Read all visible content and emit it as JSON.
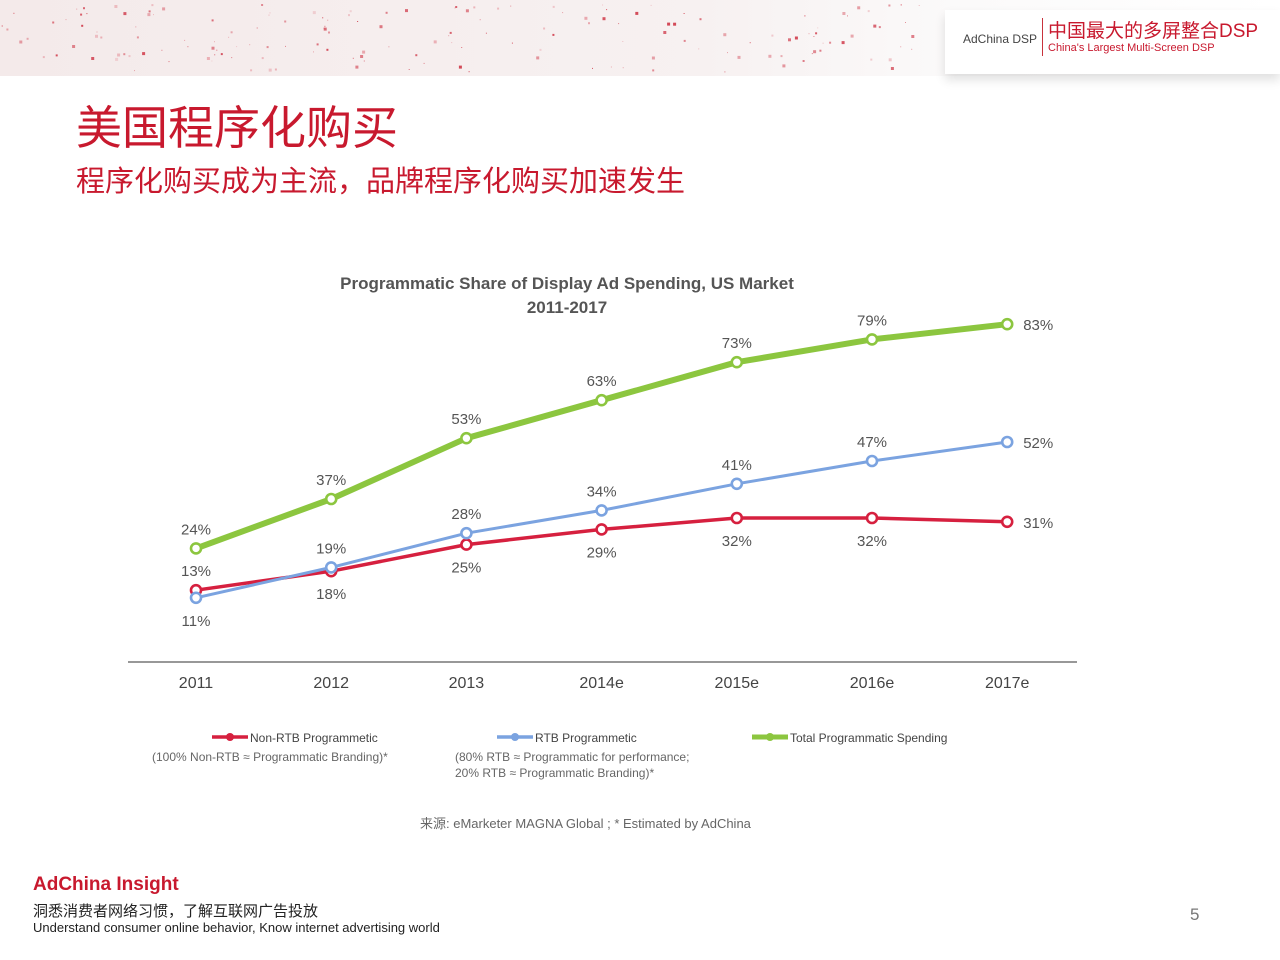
{
  "header": {
    "brand_small": "AdChina DSP",
    "brand_cn": "中国最大的多屏整合DSP",
    "brand_en": "China's Largest Multi-Screen DSP"
  },
  "title": "美国程序化购买",
  "subtitle": "程序化购买成为主流，品牌程序化购买加速发生",
  "chart_data": {
    "type": "line",
    "title": "Programmatic Share of Display Ad Spending, US Market",
    "subtitle": "2011-2017",
    "categories": [
      "2011",
      "2012",
      "2013",
      "2014e",
      "2015e",
      "2016e",
      "2017e"
    ],
    "ylim": [
      0,
      90
    ],
    "unit": "%",
    "grid": false,
    "legend_position": "bottom",
    "series": [
      {
        "name": "Non-RTB Programmetic",
        "note": "(100% Non-RTB ≈ Programmatic Branding)*",
        "color": "#d6203f",
        "values": [
          13,
          18,
          25,
          29,
          32,
          32,
          31
        ],
        "labels": [
          "13%",
          "18%",
          "25%",
          "29%",
          "32%",
          "32%",
          "31%"
        ]
      },
      {
        "name": "RTB Programmetic",
        "note": "(80% RTB ≈ Programmatic for performance;\n20% RTB ≈ Programmatic Branding)*",
        "color": "#7ba3e0",
        "values": [
          11,
          19,
          28,
          34,
          41,
          47,
          52
        ],
        "labels": [
          "11%",
          "19%",
          "28%",
          "34%",
          "41%",
          "47%",
          "52%"
        ]
      },
      {
        "name": "Total Programmatic Spending",
        "note": "",
        "color": "#8cc63f",
        "values": [
          24,
          37,
          53,
          63,
          73,
          79,
          83
        ],
        "labels": [
          "24%",
          "37%",
          "53%",
          "63%",
          "73%",
          "79%",
          "83%"
        ]
      }
    ]
  },
  "source": "来源:  eMarketer MAGNA Global ; * Estimated by AdChina",
  "footer": {
    "brand": "AdChina Insight",
    "cn": "洞悉消费者网络习惯，了解互联网广告投放",
    "en": "Understand consumer online behavior, Know internet advertising world"
  },
  "page_number": "5"
}
